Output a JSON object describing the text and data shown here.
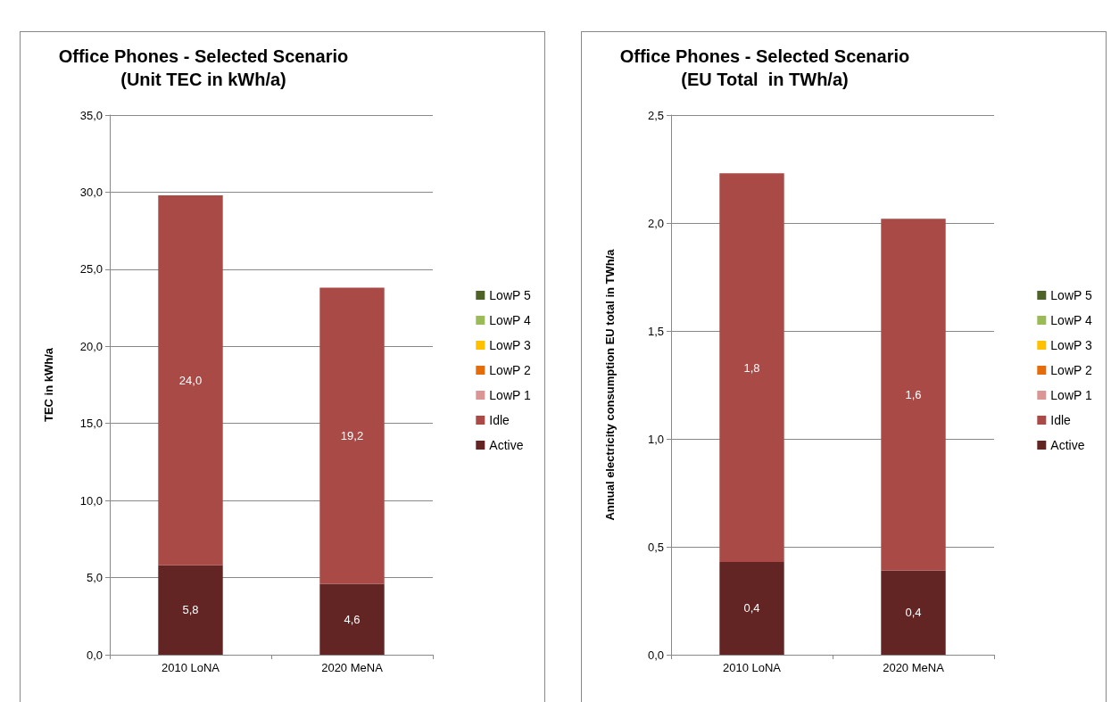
{
  "chart_data": [
    {
      "type": "bar",
      "title": "Office Phones - Selected Scenario",
      "subtitle": "(Unit TEC in kWh/a)",
      "ylabel": "TEC in kWh/a",
      "categories": [
        "2010 LoNA",
        "2020 MeNA"
      ],
      "stacked": true,
      "legend": "right",
      "grid": "y",
      "ylim": [
        0,
        35
      ],
      "yticks": [
        {
          "value": 0,
          "label": "0,0"
        },
        {
          "value": 5,
          "label": "5,0"
        },
        {
          "value": 10,
          "label": "10,0"
        },
        {
          "value": 15,
          "label": "15,0"
        },
        {
          "value": 20,
          "label": "20,0"
        },
        {
          "value": 25,
          "label": "25,0"
        },
        {
          "value": 30,
          "label": "30,0"
        },
        {
          "value": 35,
          "label": "35,0"
        }
      ],
      "series": [
        {
          "name": "Active",
          "color": "#632523",
          "values": [
            5.8,
            4.6
          ],
          "value_labels": [
            "5,8",
            "4,6"
          ]
        },
        {
          "name": "Idle",
          "color": "#a94a47",
          "values": [
            24.0,
            19.2
          ],
          "value_labels": [
            "24,0",
            "19,2"
          ]
        },
        {
          "name": "LowP 1",
          "color": "#d99694",
          "values": [
            0,
            0
          ]
        },
        {
          "name": "LowP 2",
          "color": "#e46c0a",
          "values": [
            0,
            0
          ]
        },
        {
          "name": "LowP 3",
          "color": "#ffc000",
          "values": [
            0,
            0
          ]
        },
        {
          "name": "LowP 4",
          "color": "#9bbb59",
          "values": [
            0,
            0
          ]
        },
        {
          "name": "LowP 5",
          "color": "#4f6228",
          "values": [
            0,
            0
          ]
        }
      ]
    },
    {
      "type": "bar",
      "title": "Office Phones - Selected Scenario",
      "subtitle": "(EU Total  in TWh/a)",
      "ylabel": "Annual electricity consumption EU total in TWh/a",
      "categories": [
        "2010 LoNA",
        "2020 MeNA"
      ],
      "stacked": true,
      "legend": "right",
      "grid": "y",
      "ylim": [
        0,
        2.5
      ],
      "yticks": [
        {
          "value": 0,
          "label": "0,0"
        },
        {
          "value": 0.5,
          "label": "0,5"
        },
        {
          "value": 1,
          "label": "1,0"
        },
        {
          "value": 1.5,
          "label": "1,5"
        },
        {
          "value": 2,
          "label": "2,0"
        },
        {
          "value": 2.5,
          "label": "2,5"
        }
      ],
      "series": [
        {
          "name": "Active",
          "color": "#632523",
          "values": [
            0.43,
            0.39
          ],
          "value_labels": [
            "0,4",
            "0,4"
          ]
        },
        {
          "name": "Idle",
          "color": "#a94a47",
          "values": [
            1.8,
            1.63
          ],
          "value_labels": [
            "1,8",
            "1,6"
          ]
        },
        {
          "name": "LowP 1",
          "color": "#d99694",
          "values": [
            0,
            0
          ]
        },
        {
          "name": "LowP 2",
          "color": "#e46c0a",
          "values": [
            0,
            0
          ]
        },
        {
          "name": "LowP 3",
          "color": "#ffc000",
          "values": [
            0,
            0
          ]
        },
        {
          "name": "LowP 4",
          "color": "#9bbb59",
          "values": [
            0,
            0
          ]
        },
        {
          "name": "LowP 5",
          "color": "#4f6228",
          "values": [
            0,
            0
          ]
        }
      ]
    }
  ]
}
